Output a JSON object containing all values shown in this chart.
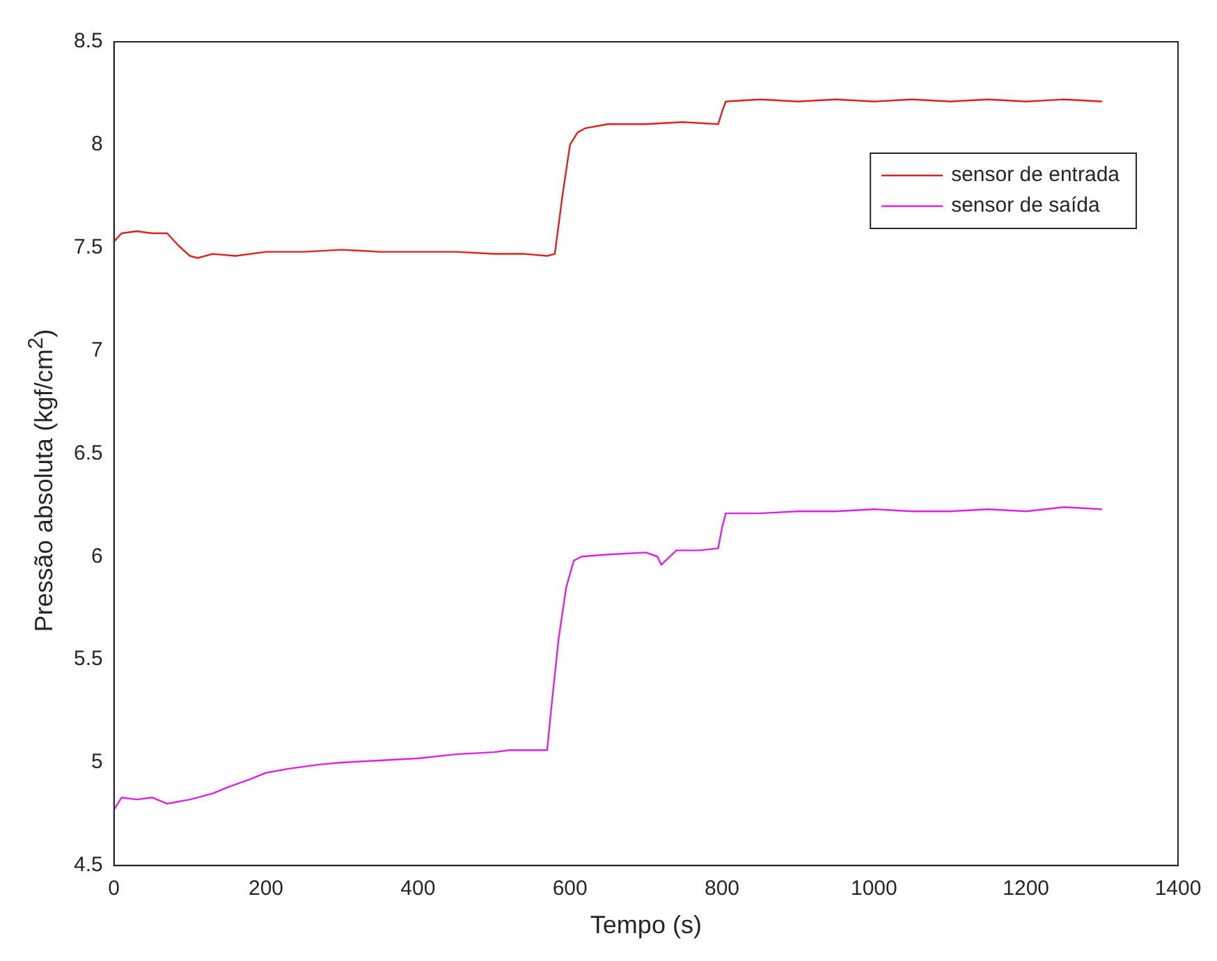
{
  "chart_data": {
    "type": "line",
    "xlabel": "Tempo (s)",
    "ylabel": "Pressão absoluta (kgf/cm$^{2}$)",
    "xlim": [
      0,
      1400
    ],
    "xticks": [
      0,
      200,
      400,
      600,
      800,
      1000,
      1200,
      1400
    ],
    "ylim": [
      4.5,
      8.5
    ],
    "yticks": [
      4.5,
      5,
      5.5,
      6,
      6.5,
      7,
      7.5,
      8,
      8.5
    ],
    "grid": false,
    "legend": "top right",
    "marker": "none",
    "line_style": "solid",
    "series": [
      {
        "name": "sensor de entrada",
        "color": "#e0201c",
        "x": [
          0,
          10,
          30,
          50,
          70,
          85,
          100,
          110,
          130,
          160,
          200,
          250,
          300,
          350,
          400,
          450,
          500,
          540,
          570,
          580,
          590,
          600,
          610,
          620,
          650,
          700,
          750,
          795,
          800,
          805,
          850,
          900,
          950,
          1000,
          1050,
          1100,
          1150,
          1200,
          1250,
          1300
        ],
        "values": [
          7.53,
          7.57,
          7.58,
          7.57,
          7.57,
          7.51,
          7.46,
          7.45,
          7.47,
          7.46,
          7.48,
          7.48,
          7.49,
          7.48,
          7.48,
          7.48,
          7.47,
          7.47,
          7.46,
          7.47,
          7.75,
          8.0,
          8.06,
          8.08,
          8.1,
          8.1,
          8.11,
          8.1,
          8.16,
          8.21,
          8.22,
          8.21,
          8.22,
          8.21,
          8.22,
          8.21,
          8.22,
          8.21,
          8.22,
          8.21
        ]
      },
      {
        "name": "sensor de saída",
        "color": "#e020e8",
        "x": [
          0,
          10,
          30,
          50,
          70,
          100,
          130,
          150,
          180,
          200,
          230,
          270,
          300,
          350,
          400,
          450,
          500,
          520,
          550,
          570,
          575,
          585,
          595,
          605,
          615,
          650,
          700,
          715,
          720,
          740,
          770,
          795,
          800,
          805,
          850,
          900,
          950,
          1000,
          1050,
          1100,
          1150,
          1200,
          1250,
          1300
        ],
        "values": [
          4.77,
          4.83,
          4.82,
          4.83,
          4.8,
          4.82,
          4.85,
          4.88,
          4.92,
          4.95,
          4.97,
          4.99,
          5.0,
          5.01,
          5.02,
          5.04,
          5.05,
          5.06,
          5.06,
          5.06,
          5.25,
          5.6,
          5.85,
          5.98,
          6.0,
          6.01,
          6.02,
          6.0,
          5.96,
          6.03,
          6.03,
          6.04,
          6.14,
          6.21,
          6.21,
          6.22,
          6.22,
          6.23,
          6.22,
          6.22,
          6.23,
          6.22,
          6.24,
          6.23
        ]
      }
    ]
  }
}
